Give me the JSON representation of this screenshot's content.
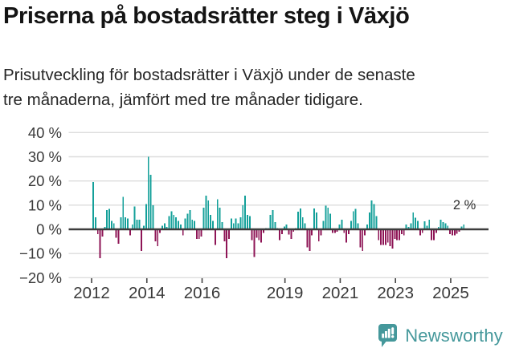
{
  "chart_data": {
    "type": "bar",
    "title": "Priserna på bostadsrätter steg i Växjö",
    "subtitle_lines": [
      "Prisutveckling för bostadsrätter i Växjö under de senaste",
      "tre månaderna, jämfört med tre månader tidigare."
    ],
    "unit": "%",
    "frequency": "monthly",
    "start_month": "2012-01",
    "end_month": "2025-06",
    "values": [
      19.5,
      5,
      -2,
      -12,
      -3,
      1,
      8,
      8.5,
      3.5,
      2.5,
      -3.5,
      -6,
      5,
      13.5,
      5,
      4.5,
      -2.5,
      2,
      9.5,
      4,
      4,
      -9,
      1.5,
      10.5,
      30,
      22.5,
      10,
      -5,
      -7,
      -1.5,
      1.5,
      2.5,
      1,
      5.5,
      7.5,
      6,
      5,
      3.5,
      2,
      -2.5,
      4.5,
      6.5,
      8,
      4,
      3.5,
      -4,
      -4,
      -3,
      9,
      14,
      12,
      6,
      3.5,
      -6.5,
      12.5,
      9,
      3,
      -5,
      -12,
      -4,
      4.5,
      2.5,
      4.5,
      2.5,
      5,
      10,
      14,
      6,
      5.5,
      -4.5,
      -11.5,
      -3.5,
      -4.5,
      -5.5,
      -1.5,
      0.5,
      0.5,
      6,
      8,
      3,
      0.5,
      -4.5,
      -2,
      1.2,
      2,
      -2.2,
      -4,
      -1,
      0.5,
      7.3,
      8.7,
      5,
      2.5,
      -7.4,
      -8.9,
      -2.5,
      8.7,
      7,
      -5,
      -2.5,
      3.5,
      9.8,
      9,
      6.5,
      -1.5,
      -1.5,
      -1,
      2,
      4,
      -1.5,
      -5.5,
      -2,
      3.5,
      7.5,
      8.5,
      2.5,
      -7.5,
      -9,
      -2.5,
      2,
      7,
      12,
      10.5,
      5.5,
      -4.5,
      -6.5,
      -6.5,
      -6.5,
      -5.5,
      -7,
      -8,
      -4,
      -4.5,
      -4.5,
      -2,
      -2.5,
      2,
      1,
      2.5,
      7,
      4.8,
      3.5,
      -2.5,
      -1.5,
      3.3,
      1.5,
      4,
      -4.4,
      -4.5,
      -1.5,
      1,
      4,
      3,
      2.5,
      1.5,
      -2,
      -2.5,
      -2.5,
      -1.8,
      -1,
      1.2,
      2
    ],
    "ylim": [
      -20,
      40
    ],
    "yticks": [
      40,
      30,
      20,
      10,
      0,
      -10,
      -20
    ],
    "ytick_labels": [
      "40 %",
      "30 %",
      "20 %",
      "10 %",
      "0 %",
      "−10 %",
      "−20 %"
    ],
    "xtick_years": [
      2012,
      2014,
      2016,
      2019,
      2021,
      2023,
      2025
    ],
    "grid": true,
    "legend": "none",
    "latest_value_label": "2 %",
    "colors": {
      "positive": "#14a09a",
      "negative": "#8e1556",
      "zero_line": "#3d3d3d",
      "grid": "#dddddd",
      "axis_text": "#3a3a3a"
    }
  },
  "footer": {
    "brand": "Newsworthy",
    "brand_color": "#45989b",
    "logo_icon": "bar-chart-speech-bubble-icon"
  }
}
